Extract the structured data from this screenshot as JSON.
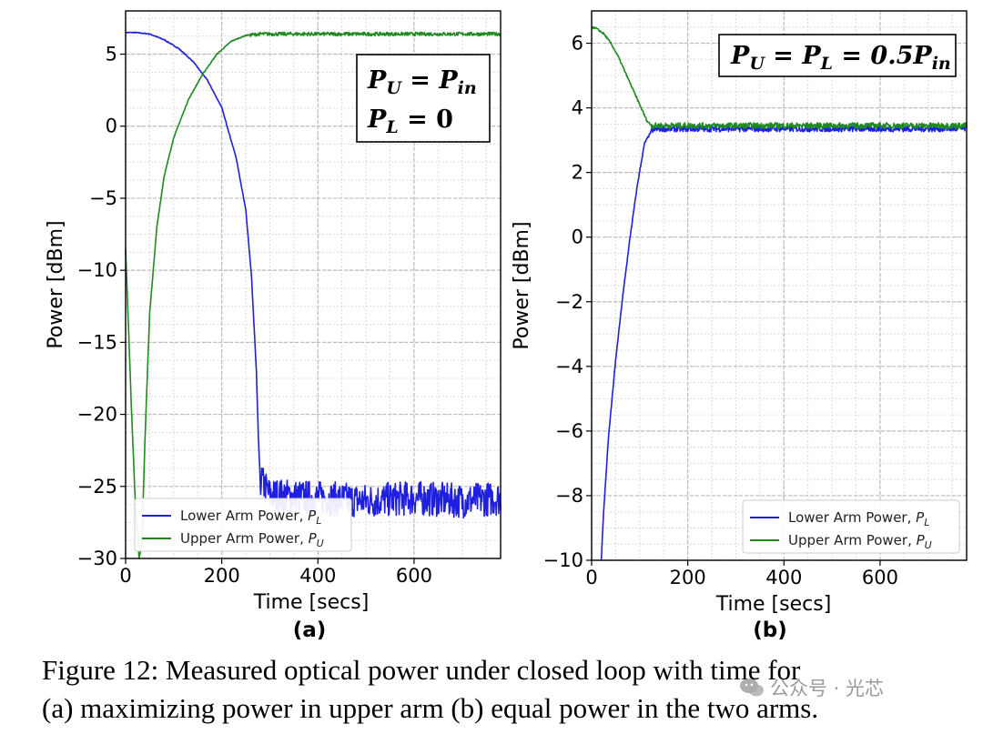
{
  "chart_data": [
    {
      "type": "line",
      "panel_label": "(a)",
      "xlabel": "Time [secs]",
      "ylabel": "Power [dBm]",
      "xlim": [
        0,
        780
      ],
      "ylim": [
        -30,
        8
      ],
      "xticks": [
        0,
        200,
        400,
        600
      ],
      "yticks": [
        5,
        0,
        -5,
        -10,
        -15,
        -20,
        -25,
        -30
      ],
      "xtick_labels": [
        "0",
        "200",
        "400",
        "600"
      ],
      "ytick_labels": [
        "5",
        "0",
        "−5",
        "−10",
        "−15",
        "−20",
        "−25",
        "−30"
      ],
      "grid": true,
      "legend_position": "lower-left",
      "legend": [
        {
          "label": "Lower Arm Power, ",
          "sub": "L",
          "color": "#1f1fe0"
        },
        {
          "label": "Upper Arm Power, ",
          "sub": "U",
          "color": "#1f8a1f"
        }
      ],
      "annotation": {
        "line1": "P",
        "line1_sub": "U",
        "line1_rest": " = P",
        "line1_rest_sub": "in",
        "line2": "P",
        "line2_sub": "L",
        "line2_rest": " = 0"
      },
      "series": [
        {
          "name": "Lower Arm Power, P_L",
          "color": "#1f1fe0",
          "x": [
            0,
            20,
            50,
            80,
            110,
            140,
            170,
            200,
            230,
            250,
            262,
            272,
            276,
            280,
            300,
            400,
            500,
            600,
            700,
            780
          ],
          "y": [
            6.5,
            6.5,
            6.4,
            6.0,
            5.4,
            4.5,
            3.2,
            1.3,
            -2.2,
            -5.8,
            -10.5,
            -17.0,
            -21.5,
            -24.5,
            -25.6,
            -25.8,
            -26.0,
            -25.8,
            -26.0,
            -25.8
          ]
        },
        {
          "name": "Upper Arm Power, P_U",
          "color": "#1f8a1f",
          "x": [
            0,
            5,
            12,
            20,
            28,
            34,
            40,
            50,
            65,
            80,
            100,
            130,
            160,
            190,
            220,
            250,
            280,
            300,
            400,
            500,
            600,
            700,
            780
          ],
          "y": [
            -8.5,
            -13.0,
            -19.5,
            -26.0,
            -30.0,
            -29.0,
            -22.0,
            -13.0,
            -7.0,
            -3.5,
            -0.8,
            1.8,
            3.6,
            5.0,
            5.9,
            6.3,
            6.4,
            6.4,
            6.4,
            6.4,
            6.4,
            6.4,
            6.4
          ]
        }
      ]
    },
    {
      "type": "line",
      "panel_label": "(b)",
      "xlabel": "Time [secs]",
      "ylabel": "Power [dBm]",
      "xlim": [
        0,
        780
      ],
      "ylim": [
        -10,
        7
      ],
      "xticks": [
        0,
        200,
        400,
        600
      ],
      "yticks": [
        6,
        4,
        2,
        0,
        -2,
        -4,
        -6,
        -8,
        -10
      ],
      "xtick_labels": [
        "0",
        "200",
        "400",
        "600"
      ],
      "ytick_labels": [
        "6",
        "4",
        "2",
        "0",
        "−2",
        "−4",
        "−6",
        "−8",
        "−10"
      ],
      "grid": true,
      "legend_position": "lower-right",
      "legend": [
        {
          "label": "Lower Arm Power, ",
          "sub": "L",
          "color": "#1f1fe0"
        },
        {
          "label": "Upper Arm Power, ",
          "sub": "U",
          "color": "#1f8a1f"
        }
      ],
      "annotation": {
        "line1": "P",
        "line1_sub": "U",
        "line1_rest": " = P",
        "line1_rest_sub": "L",
        "line1_tail": " = 0.5P",
        "line1_tail_sub": "in"
      },
      "series": [
        {
          "name": "Lower Arm Power, P_L",
          "color": "#1f1fe0",
          "x": [
            20,
            25,
            35,
            50,
            65,
            80,
            95,
            110,
            125,
            140,
            200,
            300,
            400,
            500,
            600,
            700,
            780
          ],
          "y": [
            -10.0,
            -8.5,
            -6.2,
            -3.8,
            -1.8,
            0.0,
            1.6,
            2.9,
            3.3,
            3.35,
            3.35,
            3.35,
            3.35,
            3.35,
            3.35,
            3.35,
            3.35
          ]
        },
        {
          "name": "Upper Arm Power, P_U",
          "color": "#1f8a1f",
          "x": [
            0,
            10,
            25,
            40,
            55,
            70,
            85,
            100,
            115,
            125,
            140,
            200,
            300,
            400,
            500,
            600,
            700,
            780
          ],
          "y": [
            6.5,
            6.45,
            6.3,
            6.0,
            5.6,
            5.1,
            4.6,
            4.1,
            3.6,
            3.45,
            3.45,
            3.45,
            3.45,
            3.45,
            3.45,
            3.45,
            3.45,
            3.45
          ]
        }
      ]
    }
  ],
  "caption": {
    "line1": "Figure 12: Measured optical power under closed loop with time for",
    "line2": "(a) maximizing power in upper arm (b) equal power in the two arms."
  },
  "watermark": {
    "text": "公众号 · 光芯"
  }
}
